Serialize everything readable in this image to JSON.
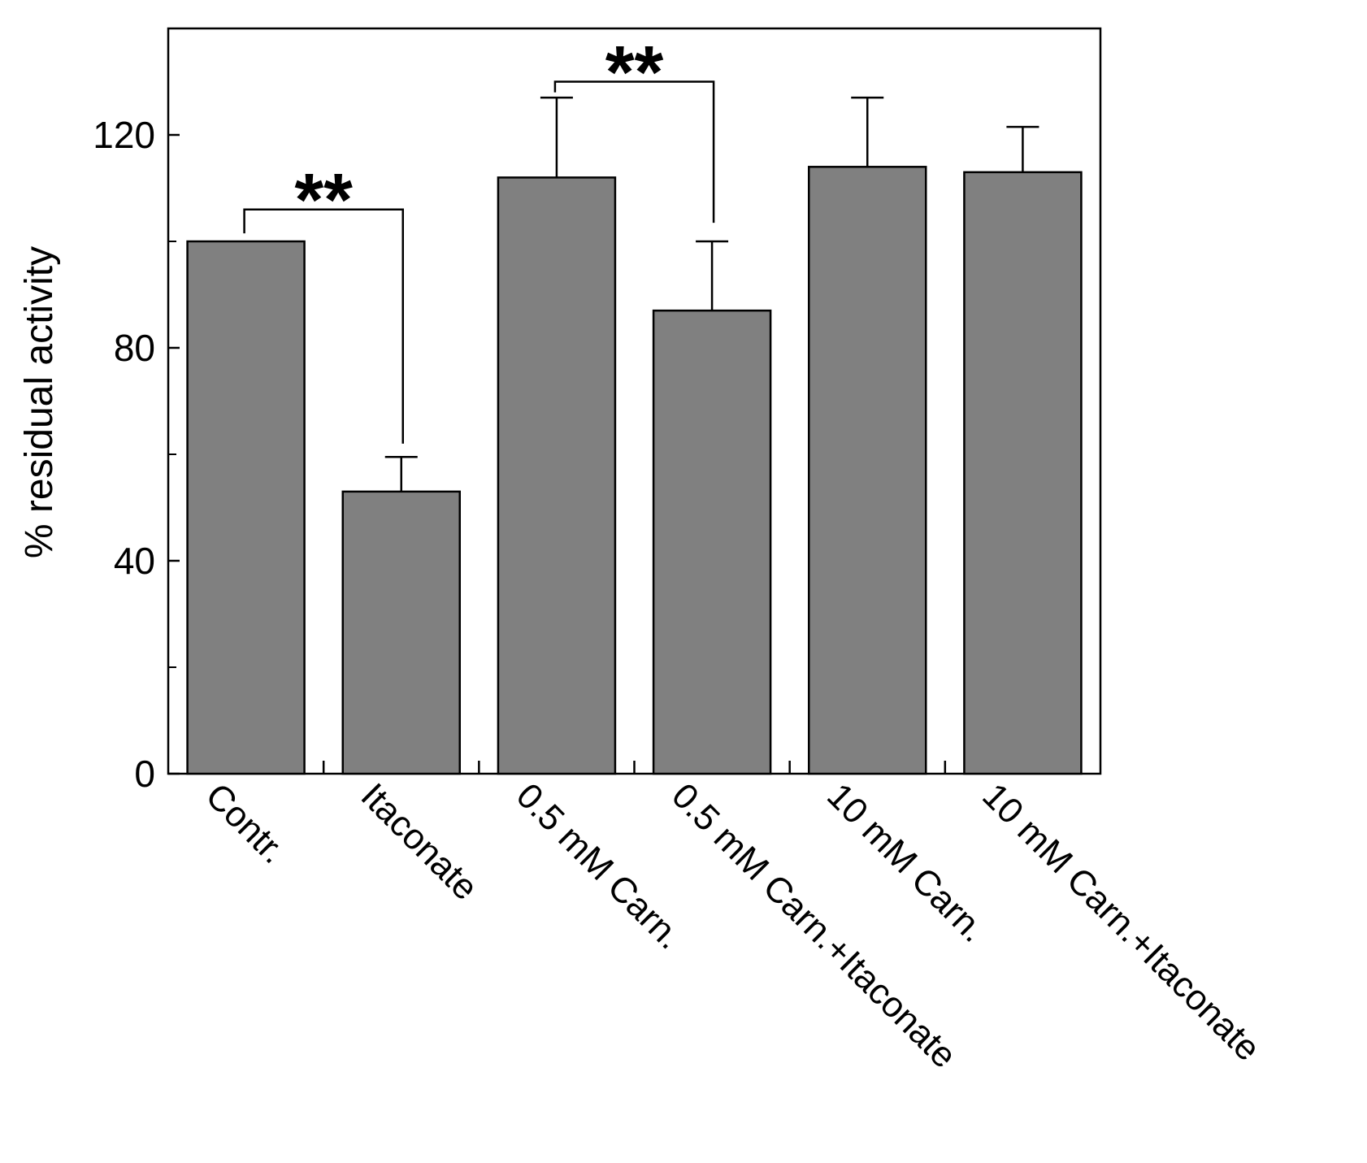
{
  "chart_data": {
    "type": "bar",
    "categories": [
      "Contr.",
      "Itaconate",
      "0.5 mM Carn.",
      "0.5 mM Carn.+Itaconate",
      "10 mM Carn.",
      "10 mM Carn.+Itaconate"
    ],
    "values": [
      100,
      53,
      112,
      87,
      114,
      113
    ],
    "errors": [
      0,
      6.5,
      15,
      13,
      13,
      8.5
    ],
    "xlabel": "",
    "ylabel": "% residual activity",
    "ylim": [
      0,
      140
    ],
    "yticks": [
      0,
      40,
      80,
      120
    ],
    "yticks_minor": [
      20,
      60,
      100
    ],
    "bar_color": "#808080",
    "grid": false,
    "significance": [
      {
        "from": 0,
        "to": 1,
        "label": "**",
        "bracket_y": 106,
        "left_drop_y": 101.5,
        "right_drop_y": 62
      },
      {
        "from": 2,
        "to": 3,
        "label": "**",
        "bracket_y": 130,
        "left_drop_y": 128,
        "right_drop_y": 103.5
      }
    ]
  }
}
